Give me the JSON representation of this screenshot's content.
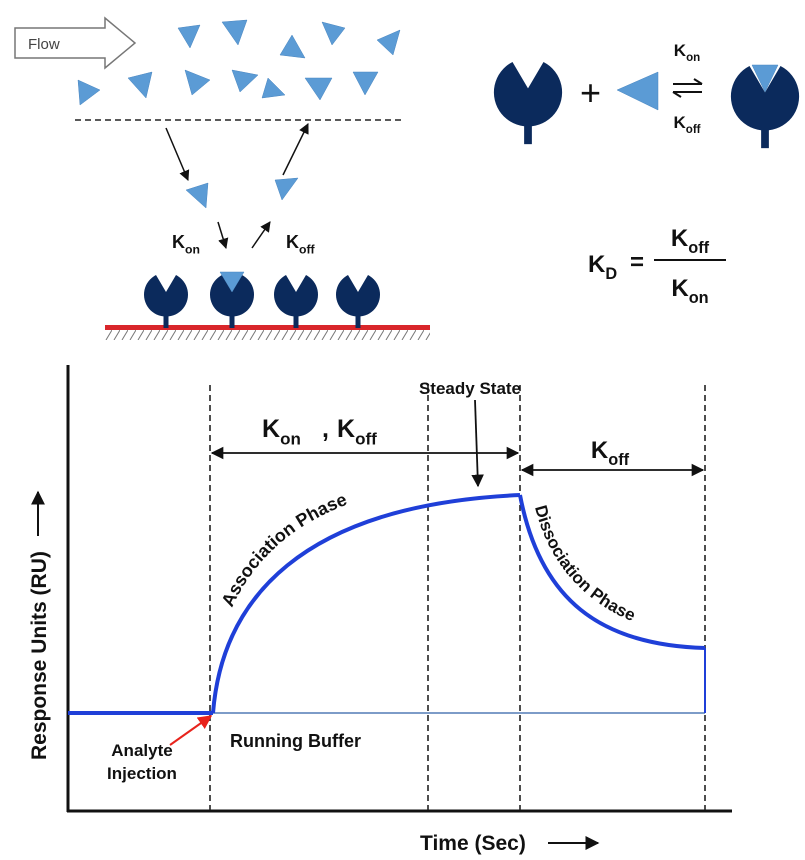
{
  "binding_panel": {
    "flow_label": "Flow",
    "k_on": {
      "base": "K",
      "sub": "on"
    },
    "k_off": {
      "base": "K",
      "sub": "off"
    }
  },
  "equation": {
    "k_on": {
      "base": "K",
      "sub": "on"
    },
    "k_off": {
      "base": "K",
      "sub": "off"
    }
  },
  "kd_formula": {
    "kd": {
      "base": "K",
      "sub": "D"
    },
    "equals": "=",
    "numerator": {
      "base": "K",
      "sub": "off"
    },
    "denominator": {
      "base": "K",
      "sub": "on"
    }
  },
  "sensorgram": {
    "y_axis_label": "Response Units (RU)",
    "x_axis_label": "Time (Sec)",
    "association_rates": {
      "k_on": {
        "base": "K",
        "sub": "on"
      },
      "separator": ",",
      "k_off": {
        "base": "K",
        "sub": "off"
      }
    },
    "dissociation_rate": {
      "base": "K",
      "sub": "off"
    },
    "steady_state": "Steady State",
    "association_phase": "Association Phase",
    "dissociation_phase": "Dissociation Phase",
    "running_buffer": "Running Buffer",
    "analyte_injection": [
      "Analyte",
      "Injection"
    ]
  }
}
